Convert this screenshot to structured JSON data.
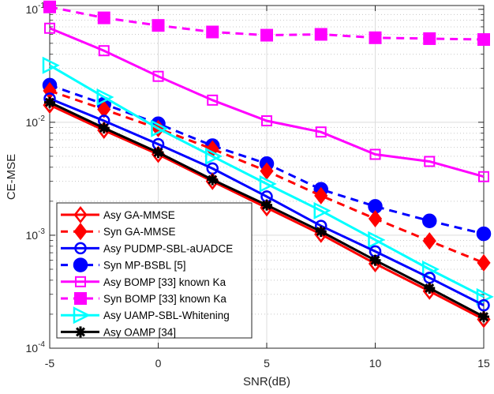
{
  "chart_data": {
    "type": "line",
    "xlabel": "SNR(dB)",
    "ylabel": "CE-MSE",
    "x": [
      -5,
      -2.5,
      0,
      2.5,
      5,
      7.5,
      10,
      12.5,
      15
    ],
    "xlim": [
      -5,
      15
    ],
    "ylim": [
      0.0001,
      0.108
    ],
    "yscale": "log",
    "xticks": [
      -5,
      0,
      5,
      10,
      15
    ],
    "yticks": [
      {
        "base": "10",
        "exp": "-1",
        "value": 0.1
      },
      {
        "base": "10",
        "exp": "-2",
        "value": 0.01
      },
      {
        "base": "10",
        "exp": "-3",
        "value": 0.001
      },
      {
        "base": "10",
        "exp": "-4",
        "value": 0.0001
      }
    ],
    "grid": true,
    "legend_position": "bottom-left",
    "series": [
      {
        "name": "Asy GA-MMSE",
        "color": "#ff0000",
        "dash": false,
        "marker": "diamond-open",
        "values": [
          0.0142,
          0.0085,
          0.0052,
          0.003,
          0.00175,
          0.00102,
          0.00056,
          0.00032,
          0.00018
        ]
      },
      {
        "name": "Syn GA-MMSE",
        "color": "#ff0000",
        "dash": true,
        "marker": "diamond-filled",
        "values": [
          0.019,
          0.013,
          0.0088,
          0.0058,
          0.0037,
          0.00224,
          0.0014,
          0.00089,
          0.00057
        ]
      },
      {
        "name": "Asy PUDMP-SBL-aUADCE",
        "color": "#0000ff",
        "dash": false,
        "marker": "circle-open",
        "values": [
          0.0162,
          0.0103,
          0.0064,
          0.0039,
          0.0022,
          0.00121,
          0.00072,
          0.00042,
          0.00024
        ]
      },
      {
        "name": "Syn MP-BSBL [5]",
        "color": "#0000ff",
        "dash": true,
        "marker": "circle-filled",
        "values": [
          0.0213,
          0.0145,
          0.0097,
          0.0062,
          0.0043,
          0.00255,
          0.0018,
          0.00134,
          0.00103
        ]
      },
      {
        "name": "Asy BOMP [33] known Ka",
        "color": "#ff00ff",
        "dash": false,
        "marker": "square-open",
        "values": [
          0.068,
          0.043,
          0.0255,
          0.0157,
          0.0103,
          0.0082,
          0.0052,
          0.0045,
          0.0033
        ]
      },
      {
        "name": "Syn BOMP [33] known Ka",
        "color": "#ff00ff",
        "dash": true,
        "marker": "square-filled",
        "values": [
          0.105,
          0.084,
          0.072,
          0.063,
          0.059,
          0.06,
          0.056,
          0.055,
          0.054
        ]
      },
      {
        "name": "Asy UAMP-SBL-Whitening",
        "color": "#00ffff",
        "dash": false,
        "marker": "triangle-right-open",
        "values": [
          0.0319,
          0.0167,
          0.0088,
          0.005,
          0.00285,
          0.00165,
          0.00091,
          0.0005,
          0.000285
        ]
      },
      {
        "name": "Asy OAMP [34]",
        "color": "#000000",
        "dash": false,
        "marker": "asterisk",
        "values": [
          0.015,
          0.0089,
          0.0054,
          0.0031,
          0.00185,
          0.00108,
          0.0006,
          0.00034,
          0.00019
        ]
      }
    ]
  }
}
